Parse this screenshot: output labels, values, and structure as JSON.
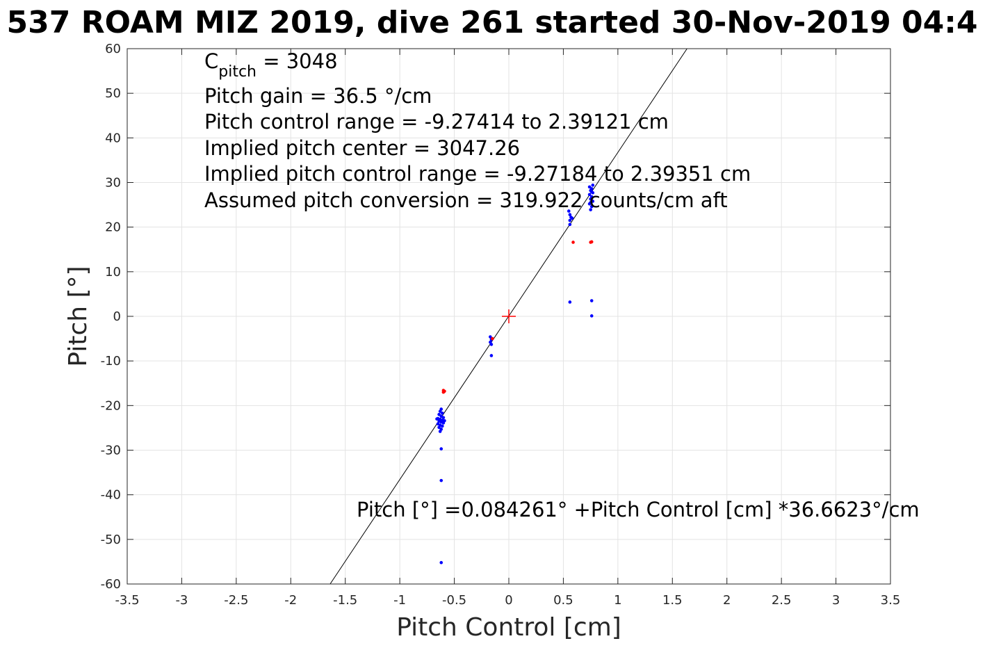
{
  "chart_data": {
    "type": "scatter",
    "title": "537 ROAM MIZ 2019, dive 261 started 30-Nov-2019 04:4",
    "xlabel": "Pitch Control [cm]",
    "ylabel": "Pitch [°]",
    "xlim": [
      -3.5,
      3.5
    ],
    "ylim": [
      -60,
      60
    ],
    "grid": true,
    "x_ticks": [
      "-3.5",
      "-3",
      "-2.5",
      "-2",
      "-1.5",
      "-1",
      "-0.5",
      "0",
      "0.5",
      "1",
      "1.5",
      "2",
      "2.5",
      "3",
      "3.5"
    ],
    "y_ticks": [
      "60",
      "50",
      "40",
      "30",
      "20",
      "10",
      "0",
      "-10",
      "-20",
      "-30",
      "-40",
      "-50",
      "-60"
    ],
    "annotations": {
      "c_pitch_main": "C",
      "c_pitch_sub": "pitch",
      "c_pitch_value": " = 3048",
      "pitch_gain": "Pitch gain = 36.5 °/cm",
      "pitch_control_range": "Pitch control range = -9.27414 to 2.39121 cm",
      "implied_center": "Implied pitch center = 3047.26",
      "implied_range": "Implied pitch control range = -9.27184 to 2.39351 cm",
      "assumed_conversion": "Assumed pitch conversion = 319.922 counts/cm aft",
      "fit_equation": "Pitch [°] =0.084261° +Pitch Control [cm] *36.6623°/cm"
    },
    "fit_line": {
      "intercept": 0.084261,
      "slope": 36.6623,
      "color": "#000000"
    },
    "center_marker": {
      "x": 0,
      "y": 0,
      "color": "#ff0000"
    },
    "series": [
      {
        "color": "#0000ff",
        "points": [
          [
            -0.62,
            -20.8
          ],
          [
            -0.63,
            -21.3
          ],
          [
            -0.61,
            -21.7
          ],
          [
            -0.64,
            -22.0
          ],
          [
            -0.62,
            -22.4
          ],
          [
            -0.6,
            -22.7
          ],
          [
            -0.65,
            -22.9
          ],
          [
            -0.63,
            -23.1
          ],
          [
            -0.61,
            -23.3
          ],
          [
            -0.64,
            -23.5
          ],
          [
            -0.62,
            -23.7
          ],
          [
            -0.6,
            -23.9
          ],
          [
            -0.65,
            -24.1
          ],
          [
            -0.63,
            -24.4
          ],
          [
            -0.61,
            -24.6
          ],
          [
            -0.64,
            -24.9
          ],
          [
            -0.62,
            -25.3
          ],
          [
            -0.63,
            -25.8
          ],
          [
            -0.66,
            -23.0
          ],
          [
            -0.59,
            -23.4
          ],
          [
            -0.62,
            -29.7
          ],
          [
            -0.62,
            -36.8
          ],
          [
            -0.62,
            -55.2
          ],
          [
            -0.17,
            -4.6
          ],
          [
            -0.16,
            -5.2
          ],
          [
            -0.17,
            -5.8
          ],
          [
            -0.16,
            -6.3
          ],
          [
            -0.16,
            -8.8
          ],
          [
            0.56,
            20.6
          ],
          [
            0.56,
            21.5
          ],
          [
            0.57,
            22.2
          ],
          [
            0.56,
            22.8
          ],
          [
            0.55,
            23.6
          ],
          [
            0.58,
            22.0
          ],
          [
            0.56,
            3.2
          ],
          [
            0.75,
            23.9
          ],
          [
            0.76,
            24.6
          ],
          [
            0.74,
            25.2
          ],
          [
            0.77,
            25.8
          ],
          [
            0.75,
            26.3
          ],
          [
            0.76,
            26.8
          ],
          [
            0.74,
            27.3
          ],
          [
            0.77,
            27.7
          ],
          [
            0.75,
            28.2
          ],
          [
            0.76,
            28.6
          ],
          [
            0.74,
            29.0
          ],
          [
            0.77,
            29.4
          ],
          [
            0.75,
            25.5
          ],
          [
            0.76,
            27.9
          ],
          [
            0.76,
            3.5
          ],
          [
            0.76,
            0.1
          ]
        ]
      },
      {
        "color": "#ff0000",
        "points": [
          [
            -0.6,
            -16.6
          ],
          [
            -0.59,
            -16.8
          ],
          [
            -0.6,
            -17.0
          ],
          [
            -0.15,
            -5.0
          ],
          [
            0.59,
            16.6
          ],
          [
            0.75,
            16.6
          ],
          [
            0.76,
            16.7
          ]
        ]
      }
    ]
  }
}
